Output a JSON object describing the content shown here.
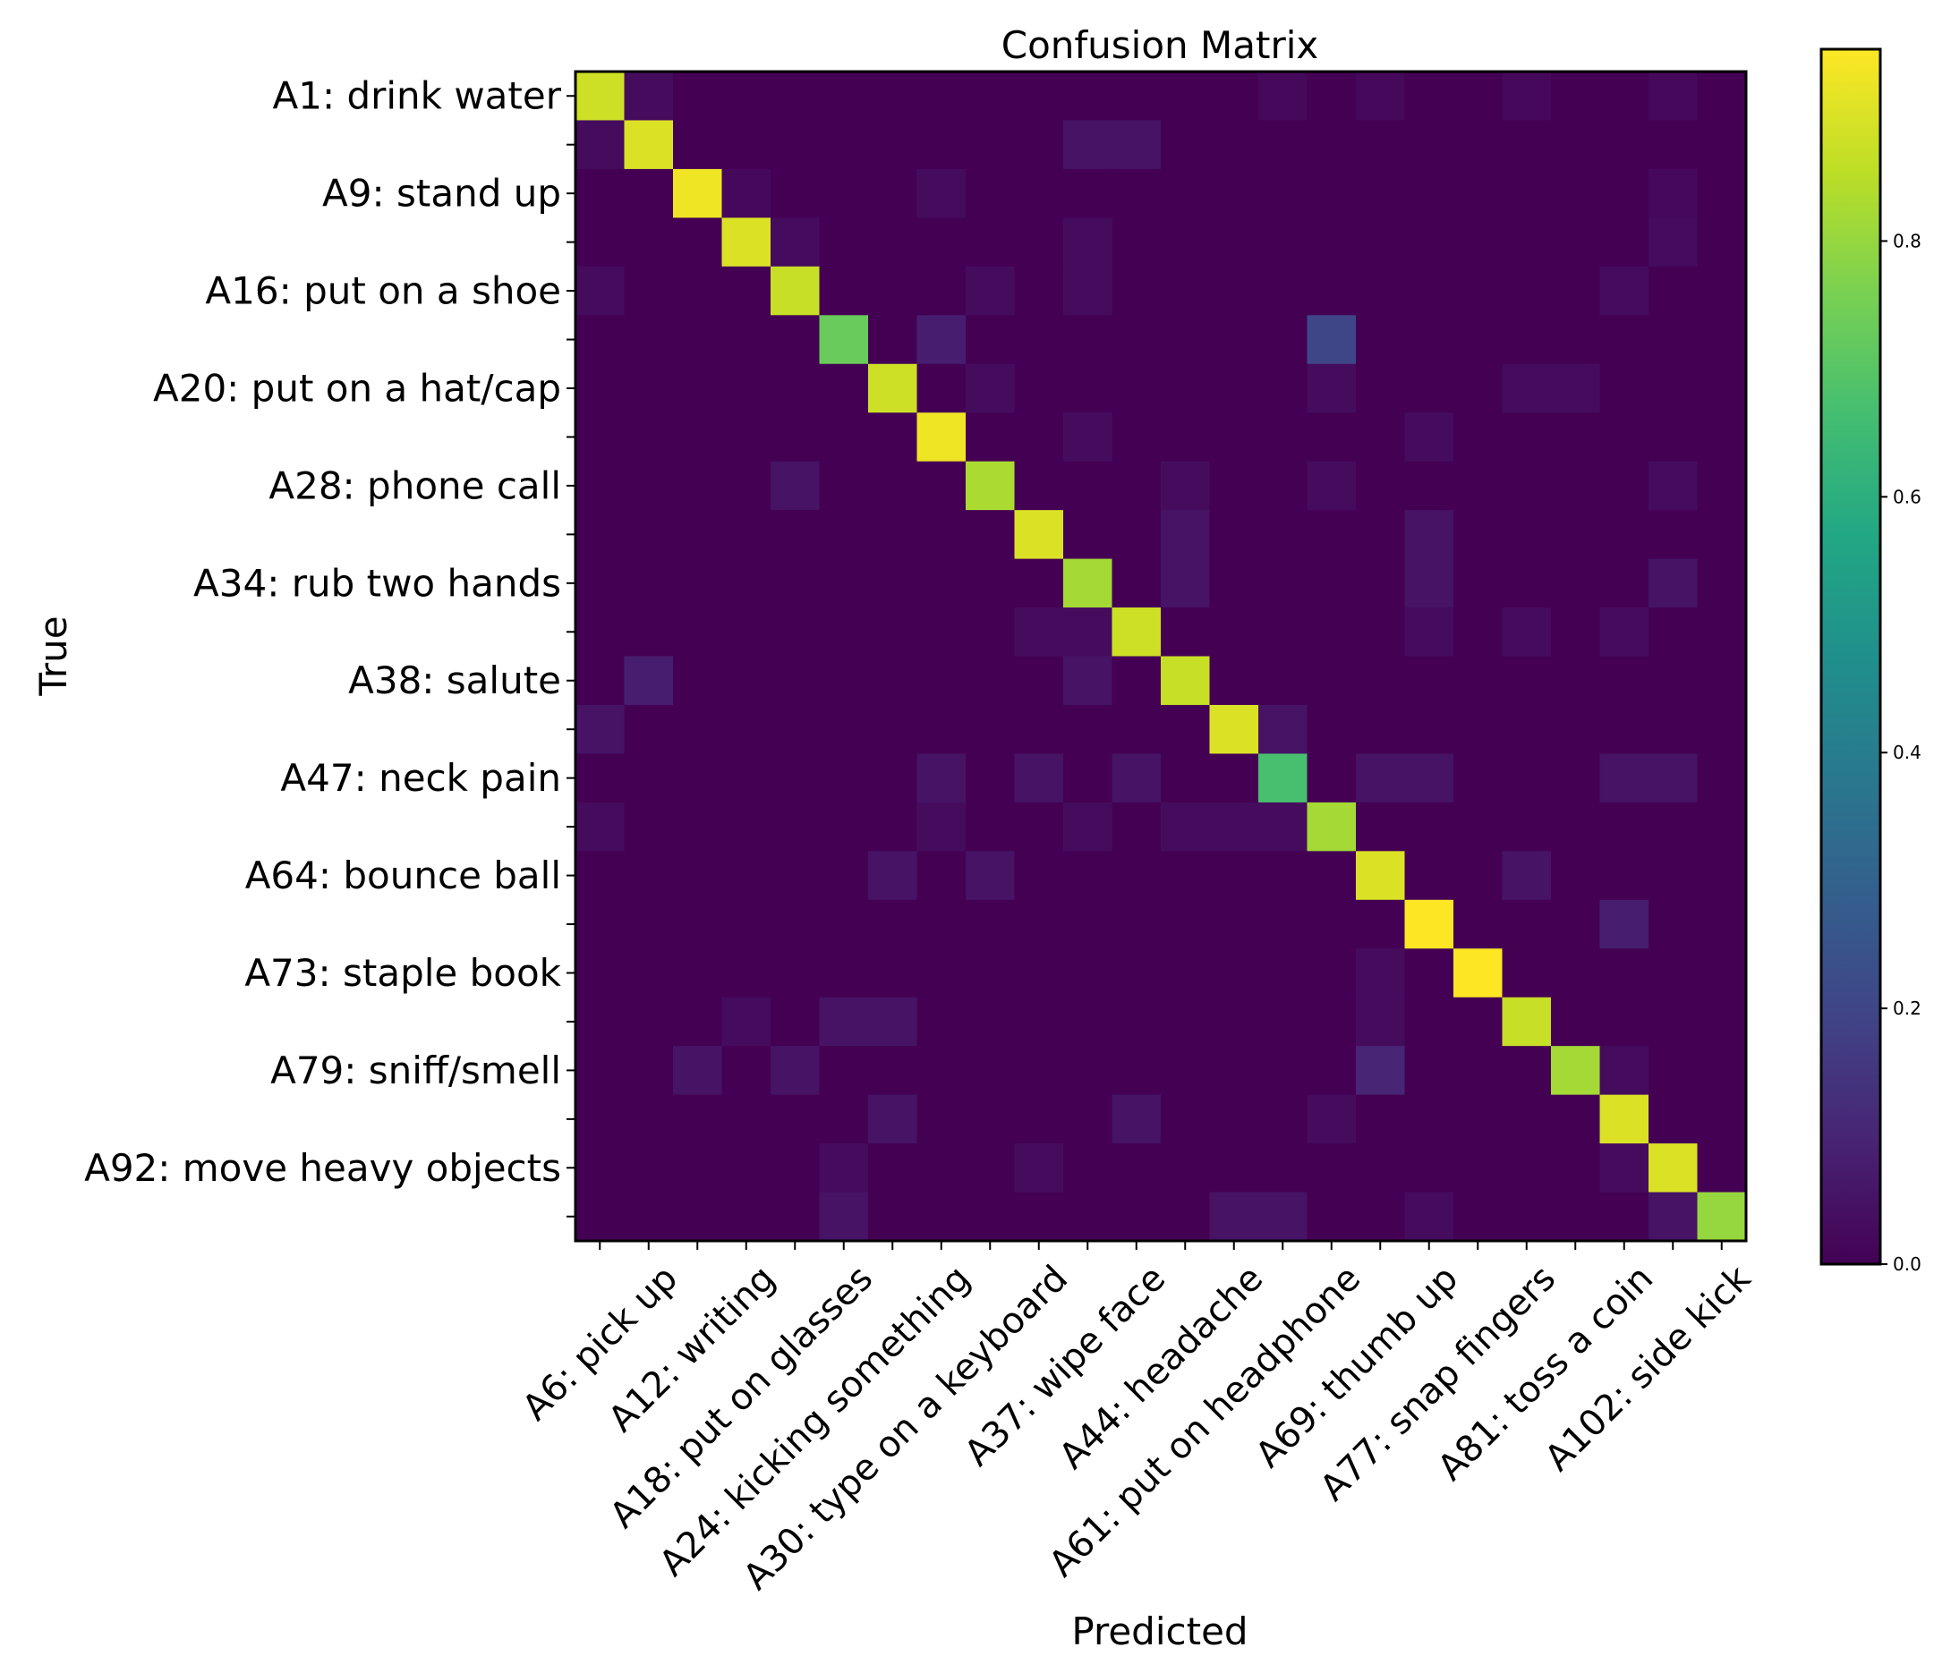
{
  "chart_data": {
    "type": "heatmap",
    "title": "Confusion Matrix",
    "xlabel": "Predicted",
    "ylabel": "True",
    "labels": [
      "A1: drink water",
      "A6: pick up",
      "A9: stand up",
      "A12: writing",
      "A16: put on a shoe",
      "A18: put on glasses",
      "A20: put on a hat/cap",
      "A24: kicking something",
      "A28: phone call",
      "A30: type on a keyboard",
      "A34: rub two hands",
      "A37: wipe face",
      "A38: salute",
      "A44: headache",
      "A47: neck pain",
      "A61: put on headphone",
      "A64: bounce ball",
      "A69: thumb up",
      "A73: staple book",
      "A77: snap fingers",
      "A79: sniff/smell",
      "A81: toss a coin",
      "A92: move heavy objects",
      "A102: side kick"
    ],
    "x_tick_labels": [
      "A6: pick up",
      "A12: writing",
      "A18: put on glasses",
      "A24: kicking something",
      "A30: type on a keyboard",
      "A37: wipe face",
      "A44: headache",
      "A61: put on headphone",
      "A69: thumb up",
      "A77: snap fingers",
      "A81: toss a coin",
      "A102: side kick"
    ],
    "y_tick_labels": [
      "A1: drink water",
      "A9: stand up",
      "A16: put on a shoe",
      "A20: put on a hat/cap",
      "A28: phone call",
      "A34: rub two hands",
      "A38: salute",
      "A47: neck pain",
      "A64: bounce ball",
      "A73: staple book",
      "A79: sniff/smell",
      "A92: move heavy objects"
    ],
    "colormap": "viridis",
    "vmin": 0,
    "vmax": 0.95,
    "colorbar_ticks": [
      "0.0",
      "0.2",
      "0.4",
      "0.6",
      "0.8"
    ],
    "matrix": [
      [
        0.88,
        0.03,
        0,
        0,
        0,
        0,
        0,
        0,
        0,
        0,
        0,
        0,
        0,
        0,
        0.02,
        0,
        0.02,
        0,
        0,
        0.02,
        0,
        0,
        0.02,
        0
      ],
      [
        0.03,
        0.9,
        0,
        0,
        0,
        0,
        0,
        0,
        0,
        0,
        0.05,
        0.05,
        0,
        0,
        0,
        0,
        0,
        0,
        0,
        0,
        0,
        0,
        0,
        0
      ],
      [
        0,
        0,
        0.93,
        0.02,
        0,
        0,
        0,
        0.03,
        0,
        0,
        0,
        0,
        0,
        0,
        0,
        0,
        0,
        0,
        0,
        0,
        0,
        0,
        0.02,
        0
      ],
      [
        0,
        0,
        0,
        0.9,
        0.03,
        0,
        0,
        0,
        0,
        0,
        0.03,
        0,
        0,
        0,
        0,
        0,
        0,
        0,
        0,
        0,
        0,
        0,
        0.03,
        0
      ],
      [
        0.03,
        0,
        0,
        0,
        0.87,
        0,
        0,
        0,
        0.03,
        0,
        0.03,
        0,
        0,
        0,
        0,
        0,
        0,
        0,
        0,
        0,
        0,
        0.03,
        0,
        0
      ],
      [
        0,
        0,
        0,
        0,
        0,
        0.73,
        0,
        0.08,
        0,
        0,
        0,
        0,
        0,
        0,
        0,
        0.2,
        0,
        0,
        0,
        0,
        0,
        0,
        0,
        0
      ],
      [
        0,
        0,
        0,
        0,
        0,
        0,
        0.88,
        0,
        0.03,
        0,
        0,
        0,
        0,
        0,
        0,
        0.03,
        0,
        0,
        0,
        0.03,
        0.03,
        0,
        0,
        0
      ],
      [
        0,
        0,
        0,
        0,
        0,
        0,
        0,
        0.93,
        0,
        0,
        0.03,
        0,
        0,
        0,
        0,
        0,
        0,
        0.03,
        0,
        0,
        0,
        0,
        0,
        0
      ],
      [
        0,
        0,
        0,
        0,
        0.05,
        0,
        0,
        0,
        0.83,
        0,
        0,
        0,
        0.03,
        0,
        0,
        0.03,
        0,
        0,
        0,
        0,
        0,
        0,
        0.03,
        0
      ],
      [
        0,
        0,
        0,
        0,
        0,
        0,
        0,
        0,
        0,
        0.9,
        0,
        0,
        0.05,
        0,
        0,
        0,
        0,
        0.05,
        0,
        0,
        0,
        0,
        0,
        0
      ],
      [
        0,
        0,
        0,
        0,
        0,
        0,
        0,
        0,
        0,
        0,
        0.82,
        0,
        0.05,
        0,
        0,
        0,
        0,
        0.05,
        0,
        0,
        0,
        0,
        0.05,
        0
      ],
      [
        0,
        0,
        0,
        0,
        0,
        0,
        0,
        0,
        0,
        0.03,
        0.03,
        0.88,
        0,
        0,
        0,
        0,
        0,
        0.03,
        0,
        0.03,
        0,
        0.03,
        0,
        0
      ],
      [
        0,
        0.08,
        0,
        0,
        0,
        0,
        0,
        0,
        0,
        0,
        0.05,
        0,
        0.87,
        0,
        0,
        0,
        0,
        0,
        0,
        0,
        0,
        0,
        0,
        0
      ],
      [
        0.05,
        0,
        0,
        0,
        0,
        0,
        0,
        0,
        0,
        0,
        0,
        0,
        0,
        0.9,
        0.05,
        0,
        0,
        0,
        0,
        0,
        0,
        0,
        0,
        0
      ],
      [
        0,
        0,
        0,
        0,
        0,
        0,
        0,
        0.05,
        0,
        0.05,
        0,
        0.05,
        0,
        0,
        0.67,
        0,
        0.05,
        0.05,
        0,
        0,
        0,
        0.05,
        0.05,
        0
      ],
      [
        0.03,
        0,
        0,
        0,
        0,
        0,
        0,
        0.03,
        0,
        0,
        0.03,
        0,
        0.03,
        0.03,
        0.03,
        0.82,
        0,
        0,
        0,
        0,
        0,
        0,
        0,
        0
      ],
      [
        0,
        0,
        0,
        0,
        0,
        0,
        0.05,
        0,
        0.05,
        0,
        0,
        0,
        0,
        0,
        0,
        0,
        0.9,
        0,
        0,
        0.05,
        0,
        0,
        0,
        0
      ],
      [
        0,
        0,
        0,
        0,
        0,
        0,
        0,
        0,
        0,
        0,
        0,
        0,
        0,
        0,
        0,
        0,
        0,
        0.95,
        0,
        0,
        0,
        0.08,
        0,
        0
      ],
      [
        0,
        0,
        0,
        0,
        0,
        0,
        0,
        0,
        0,
        0,
        0,
        0,
        0,
        0,
        0,
        0,
        0.03,
        0,
        0.95,
        0,
        0,
        0,
        0,
        0
      ],
      [
        0,
        0,
        0,
        0.03,
        0,
        0.05,
        0.05,
        0,
        0,
        0,
        0,
        0,
        0,
        0,
        0,
        0,
        0.03,
        0,
        0,
        0.87,
        0,
        0,
        0,
        0
      ],
      [
        0,
        0,
        0.05,
        0,
        0.05,
        0,
        0,
        0,
        0,
        0,
        0,
        0,
        0,
        0,
        0,
        0,
        0.1,
        0,
        0,
        0,
        0.82,
        0.03,
        0,
        0
      ],
      [
        0,
        0,
        0,
        0,
        0,
        0,
        0.05,
        0,
        0,
        0,
        0,
        0.05,
        0,
        0,
        0,
        0.03,
        0,
        0,
        0,
        0,
        0,
        0.9,
        0,
        0
      ],
      [
        0,
        0,
        0,
        0,
        0,
        0.03,
        0,
        0,
        0,
        0.03,
        0,
        0,
        0,
        0,
        0,
        0,
        0,
        0,
        0,
        0,
        0,
        0.03,
        0.9,
        0
      ],
      [
        0,
        0,
        0,
        0,
        0,
        0.05,
        0,
        0,
        0,
        0,
        0,
        0,
        0,
        0.05,
        0.05,
        0,
        0,
        0.03,
        0,
        0,
        0,
        0,
        0.05,
        0.8
      ]
    ]
  }
}
